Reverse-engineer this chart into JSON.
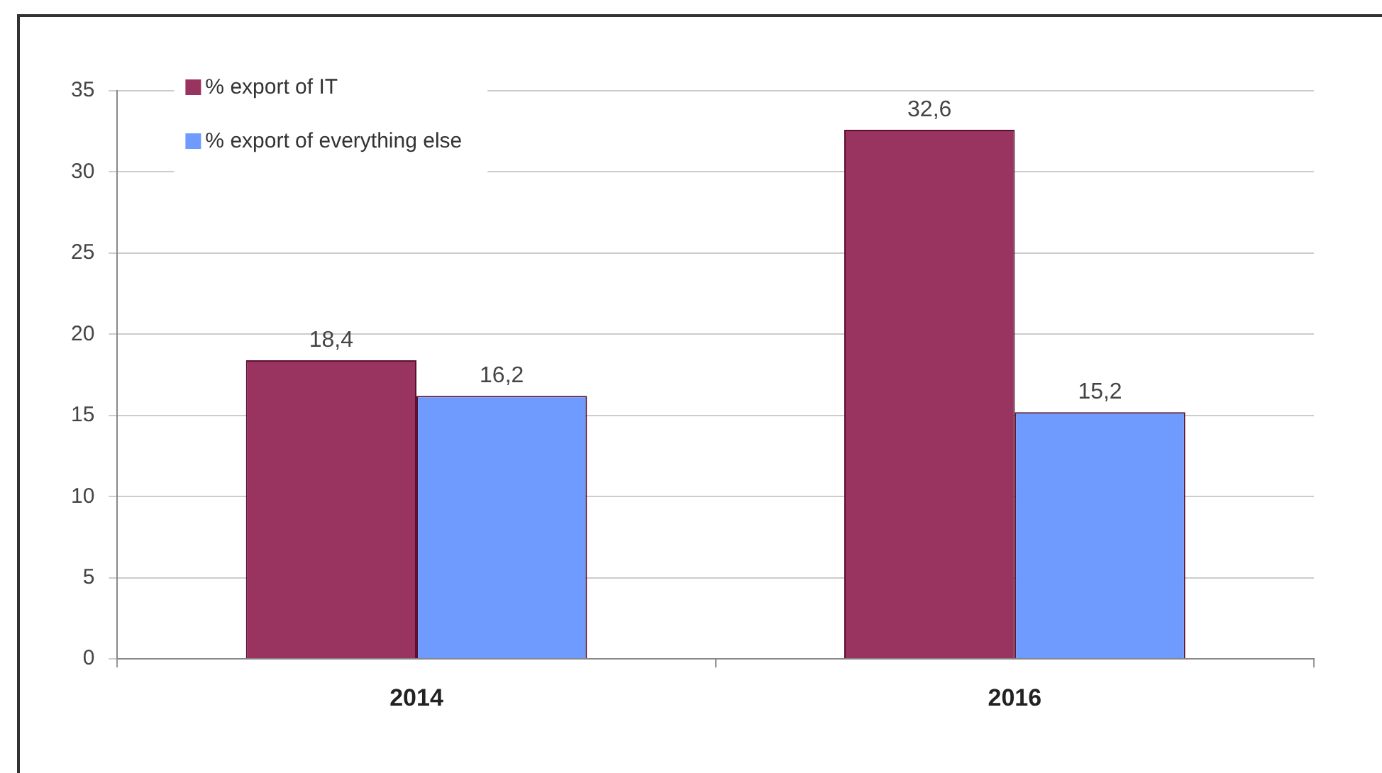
{
  "chart_data": {
    "type": "bar",
    "categories": [
      "2014",
      "2016"
    ],
    "series": [
      {
        "name": "% export of IT",
        "color": "#993360",
        "values": [
          18.4,
          32.6
        ],
        "value_labels": [
          "18,4",
          "32,6"
        ]
      },
      {
        "name": "% export of everything else",
        "color": "#6f9bff",
        "values": [
          16.2,
          15.2
        ],
        "value_labels": [
          "16,2",
          "15,2"
        ]
      }
    ],
    "ylim": [
      0,
      35
    ],
    "yticks": [
      0,
      5,
      10,
      15,
      20,
      25,
      30,
      35
    ],
    "grid": "y",
    "legend": "top left"
  }
}
